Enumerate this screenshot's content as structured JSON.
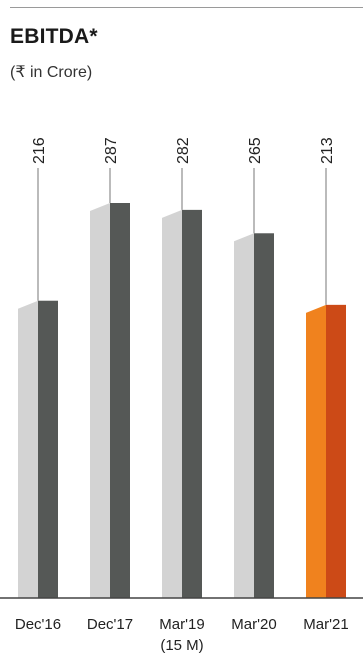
{
  "title": "EBITDA*",
  "subtitle": "(₹ in Crore)",
  "chart_data": {
    "type": "bar",
    "title": "EBITDA*",
    "subtitle": "(₹ in Crore)",
    "categories": [
      "Dec'16",
      "Dec'17",
      "Mar'19",
      "Mar'20",
      "Mar'21"
    ],
    "category_notes": [
      "",
      "",
      "(15 M)",
      "",
      ""
    ],
    "values": [
      216,
      287,
      282,
      265,
      213
    ],
    "data_labels": [
      "216",
      "287",
      "282",
      "265",
      "213"
    ],
    "ylim": [
      0,
      400
    ],
    "grid": false,
    "legend": "none",
    "highlight_index": 4,
    "colors": {
      "front": "#555856",
      "back": "#d3d3d3",
      "highlight_front": "#cc4a17",
      "highlight_back": "#f0821e",
      "leader": "#777777",
      "axis": "#444444"
    }
  }
}
